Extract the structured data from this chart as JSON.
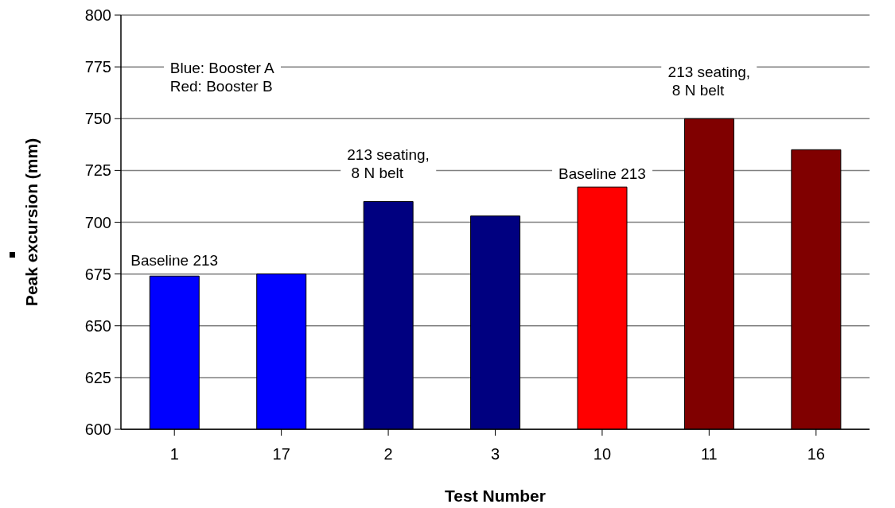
{
  "chart_data": {
    "type": "bar",
    "xlabel": "Test Number",
    "ylabel": "Peak excursion (mm)",
    "categories": [
      "1",
      "17",
      "2",
      "3",
      "10",
      "11",
      "16"
    ],
    "values": [
      674,
      675,
      710,
      703,
      717,
      750,
      735
    ],
    "colors": [
      "#0000ff",
      "#0000ff",
      "#000080",
      "#000080",
      "#ff0000",
      "#800000",
      "#800000"
    ],
    "ylim": [
      600,
      800
    ],
    "yticks": [
      600,
      625,
      650,
      675,
      700,
      725,
      750,
      775,
      800
    ],
    "grid": "y",
    "annotations": [
      "Blue: Booster A\nRed: Booster B",
      "Baseline 213",
      "213 seating,\n 8 N belt",
      "Baseline 213",
      "213 seating,\n 8 N belt"
    ]
  }
}
